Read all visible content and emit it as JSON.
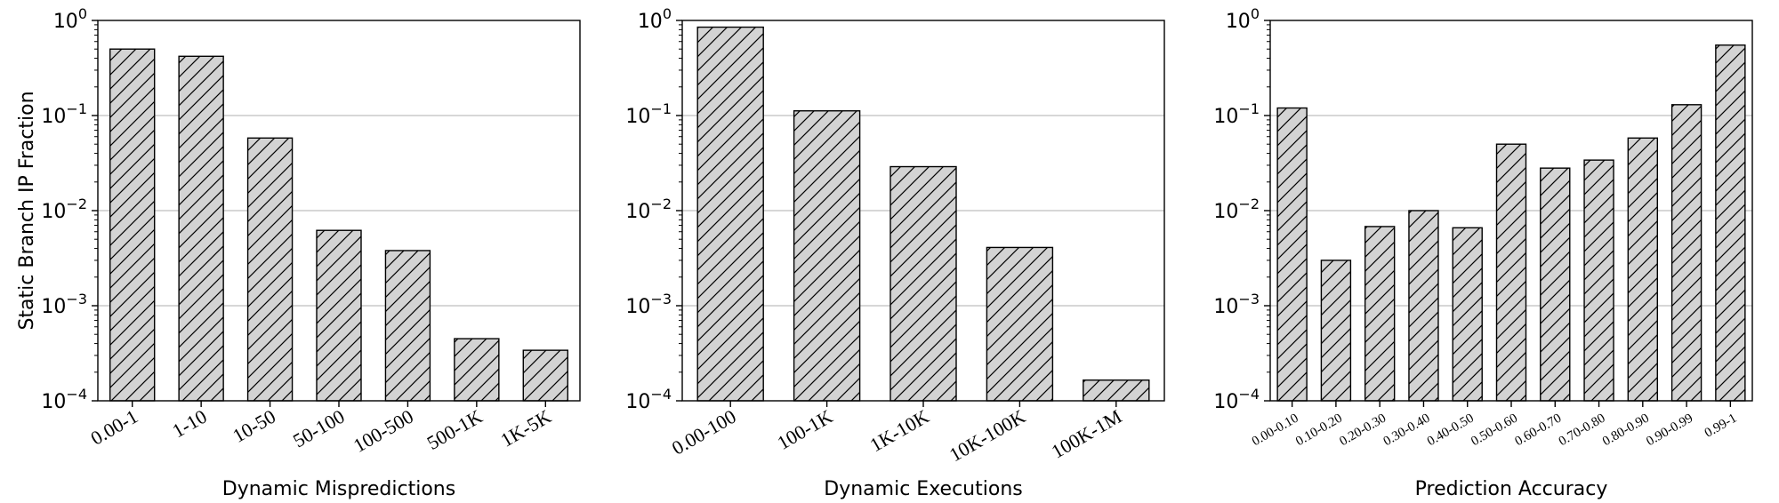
{
  "colors": {
    "bar_fill": "#d3d3d3",
    "bar_stroke": "#000000",
    "grid": "#bfbfbf",
    "axis": "#000000"
  },
  "chart_data": [
    {
      "type": "bar",
      "scale": "log",
      "categories": [
        "0.00-1",
        "1-10",
        "10-50",
        "50-100",
        "100-500",
        "500-1K",
        "1K-5K"
      ],
      "values": [
        0.5,
        0.42,
        0.058,
        0.0062,
        0.0038,
        0.00045,
        0.00034
      ],
      "xlabel": "Dynamic Mispredictions",
      "ylabel": "Static Branch IP Fraction",
      "ylim": [
        0.0001,
        1
      ],
      "yticks": [
        {
          "base": "10",
          "exp": "0"
        },
        {
          "base": "10",
          "exp": "−1"
        },
        {
          "base": "10",
          "exp": "−2"
        },
        {
          "base": "10",
          "exp": "−3"
        },
        {
          "base": "10",
          "exp": "−4"
        }
      ],
      "grid": "horizontal",
      "hatch": "diagonal"
    },
    {
      "type": "bar",
      "scale": "log",
      "categories": [
        "0.00-100",
        "100-1K",
        "1K-10K",
        "10K-100K",
        "100K-1M"
      ],
      "values": [
        0.85,
        0.112,
        0.029,
        0.0041,
        0.000165
      ],
      "xlabel": "Dynamic Executions",
      "ylabel": "",
      "ylim": [
        0.0001,
        1
      ],
      "yticks": [
        {
          "base": "10",
          "exp": "0"
        },
        {
          "base": "10",
          "exp": "−1"
        },
        {
          "base": "10",
          "exp": "−2"
        },
        {
          "base": "10",
          "exp": "−3"
        },
        {
          "base": "10",
          "exp": "−4"
        }
      ],
      "grid": "horizontal",
      "hatch": "diagonal"
    },
    {
      "type": "bar",
      "scale": "log",
      "categories": [
        "0.00-0.10",
        "0.10-0.20",
        "0.20-0.30",
        "0.30-0.40",
        "0.40-0.50",
        "0.50-0.60",
        "0.60-0.70",
        "0.70-0.80",
        "0.80-0.90",
        "0.90-0.99",
        "0.99-1"
      ],
      "values": [
        0.12,
        0.003,
        0.0068,
        0.01,
        0.0066,
        0.05,
        0.028,
        0.034,
        0.058,
        0.13,
        0.55
      ],
      "xlabel": "Prediction Accuracy",
      "ylabel": "",
      "ylim": [
        0.0001,
        1
      ],
      "yticks": [
        {
          "base": "10",
          "exp": "0"
        },
        {
          "base": "10",
          "exp": "−1"
        },
        {
          "base": "10",
          "exp": "−2"
        },
        {
          "base": "10",
          "exp": "−3"
        },
        {
          "base": "10",
          "exp": "−4"
        }
      ],
      "grid": "horizontal",
      "hatch": "diagonal"
    }
  ]
}
